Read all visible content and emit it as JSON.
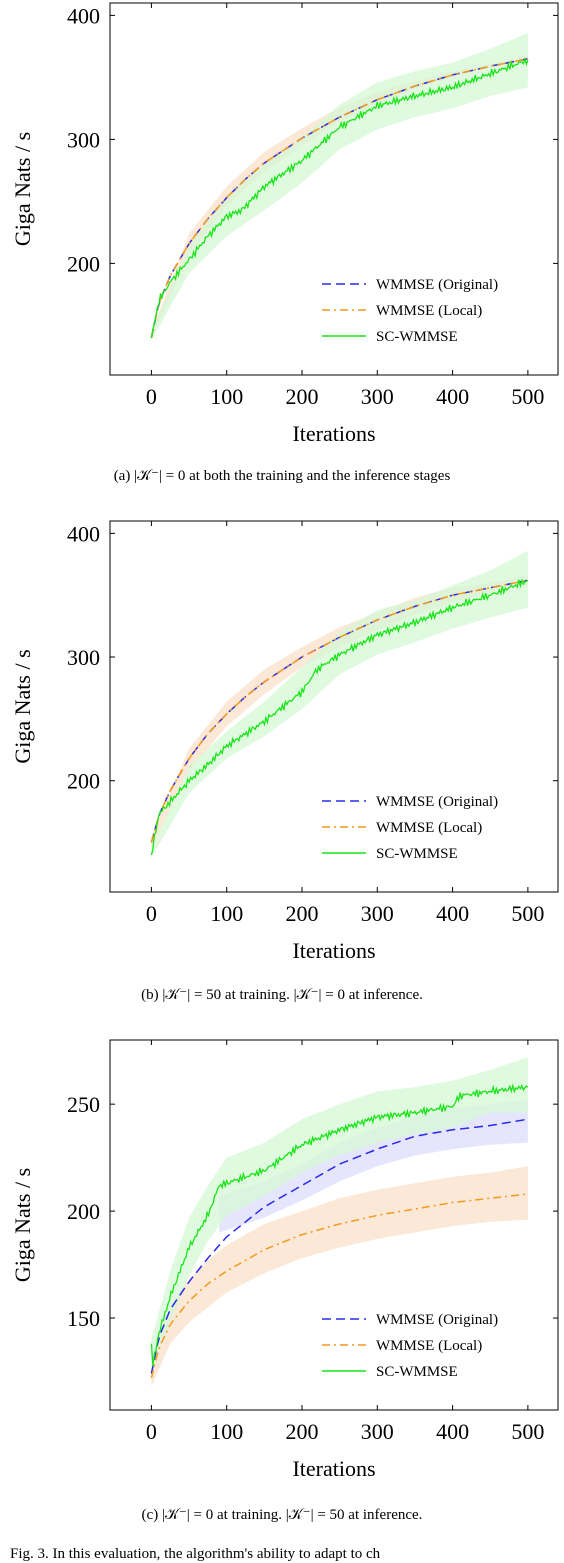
{
  "chart_data": [
    {
      "type": "line",
      "xlabel": "Iterations",
      "ylabel": "Giga Nats / s",
      "xlim": [
        -55,
        540
      ],
      "ylim": [
        110,
        410
      ],
      "xticks": [
        0,
        100,
        200,
        300,
        400,
        500
      ],
      "yticks": [
        200,
        300,
        400
      ],
      "legend_position": "bottom-right",
      "grid": false,
      "series": [
        {
          "name": "WMMSE (Original)",
          "style": "dashed",
          "color": "#2a2ae8",
          "x": [
            0,
            10,
            25,
            50,
            75,
            100,
            125,
            150,
            200,
            250,
            300,
            350,
            400,
            450,
            500
          ],
          "y": [
            140,
            168,
            190,
            216,
            236,
            253,
            268,
            281,
            301,
            318,
            332,
            343,
            352,
            359,
            365
          ]
        },
        {
          "name": "WMMSE (Local)",
          "style": "dashdot",
          "color": "#f39a1e",
          "x": [
            0,
            10,
            25,
            50,
            75,
            100,
            125,
            150,
            200,
            250,
            300,
            350,
            400,
            450,
            500
          ],
          "y": [
            140,
            168,
            190,
            216,
            236,
            253,
            268,
            281,
            301,
            318,
            332,
            343,
            352,
            359,
            365
          ]
        },
        {
          "name": "SC-WMMSE",
          "style": "solid",
          "color": "#18e418",
          "x": [
            0,
            10,
            25,
            50,
            75,
            100,
            120,
            150,
            200,
            250,
            300,
            350,
            400,
            450,
            500
          ],
          "y": [
            140,
            170,
            185,
            203,
            222,
            238,
            243,
            262,
            283,
            310,
            327,
            335,
            342,
            353,
            364
          ]
        }
      ],
      "bands": [
        {
          "series": "WMMSE (Local)",
          "color": "#fbe0c8",
          "x": [
            0,
            50,
            100,
            150,
            200,
            250,
            300,
            350,
            400,
            450,
            500
          ],
          "lower": [
            138,
            208,
            246,
            274,
            295,
            314,
            328,
            341,
            350,
            358,
            362
          ],
          "upper": [
            144,
            224,
            262,
            290,
            309,
            326,
            338,
            347,
            355,
            361,
            367
          ]
        },
        {
          "series": "SC-WMMSE",
          "color": "#d6f8d6",
          "x": [
            0,
            50,
            100,
            150,
            200,
            250,
            300,
            350,
            400,
            450,
            500
          ],
          "lower": [
            138,
            192,
            222,
            243,
            265,
            292,
            308,
            318,
            325,
            335,
            342
          ],
          "upper": [
            145,
            214,
            254,
            280,
            302,
            328,
            346,
            355,
            362,
            373,
            386
          ]
        }
      ]
    },
    {
      "type": "line",
      "xlabel": "Iterations",
      "ylabel": "Giga Nats / s",
      "xlim": [
        -55,
        540
      ],
      "ylim": [
        110,
        410
      ],
      "xticks": [
        0,
        100,
        200,
        300,
        400,
        500
      ],
      "yticks": [
        200,
        300,
        400
      ],
      "legend_position": "bottom-right",
      "grid": false,
      "series": [
        {
          "name": "WMMSE (Original)",
          "style": "dashed",
          "color": "#2a2ae8",
          "x": [
            0,
            10,
            25,
            50,
            75,
            100,
            125,
            150,
            200,
            250,
            300,
            350,
            400,
            450,
            500
          ],
          "y": [
            150,
            172,
            192,
            218,
            238,
            254,
            268,
            280,
            300,
            316,
            330,
            341,
            350,
            356,
            362
          ]
        },
        {
          "name": "WMMSE (Local)",
          "style": "dashdot",
          "color": "#f39a1e",
          "x": [
            0,
            10,
            25,
            50,
            75,
            100,
            125,
            150,
            200,
            250,
            300,
            350,
            400,
            450,
            500
          ],
          "y": [
            150,
            172,
            192,
            218,
            238,
            254,
            268,
            280,
            300,
            316,
            330,
            341,
            350,
            356,
            362
          ]
        },
        {
          "name": "SC-WMMSE",
          "style": "solid",
          "color": "#18e418",
          "x": [
            0,
            10,
            25,
            50,
            75,
            100,
            150,
            200,
            220,
            250,
            300,
            350,
            400,
            450,
            500
          ],
          "y": [
            140,
            173,
            183,
            200,
            213,
            228,
            248,
            272,
            290,
            302,
            318,
            328,
            340,
            350,
            362
          ]
        }
      ],
      "bands": [
        {
          "series": "WMMSE (Local)",
          "color": "#fbe0c8",
          "x": [
            0,
            50,
            100,
            150,
            200,
            250,
            300,
            350,
            400,
            450,
            500
          ],
          "lower": [
            145,
            208,
            244,
            270,
            292,
            308,
            322,
            334,
            344,
            352,
            358
          ],
          "upper": [
            155,
            226,
            264,
            290,
            308,
            324,
            336,
            348,
            356,
            360,
            366
          ]
        },
        {
          "series": "SC-WMMSE",
          "color": "#d6f8d6",
          "x": [
            0,
            50,
            100,
            150,
            200,
            250,
            300,
            350,
            400,
            450,
            500
          ],
          "lower": [
            138,
            190,
            218,
            236,
            258,
            286,
            302,
            312,
            323,
            332,
            340
          ],
          "upper": [
            145,
            212,
            240,
            264,
            292,
            320,
            338,
            346,
            358,
            370,
            386
          ]
        }
      ]
    },
    {
      "type": "line",
      "xlabel": "Iterations",
      "ylabel": "Giga Nats / s",
      "xlim": [
        -55,
        540
      ],
      "ylim": [
        107,
        280
      ],
      "xticks": [
        0,
        100,
        200,
        300,
        400,
        500
      ],
      "yticks": [
        150,
        200,
        250
      ],
      "legend_position": "bottom-right",
      "grid": false,
      "series": [
        {
          "name": "WMMSE (Original)",
          "style": "dashed",
          "color": "#2a2ae8",
          "x": [
            0,
            10,
            25,
            50,
            75,
            100,
            150,
            200,
            250,
            300,
            350,
            400,
            450,
            500
          ],
          "y": [
            124,
            141,
            154,
            167,
            178,
            188,
            202,
            212,
            222,
            229,
            235,
            238,
            240,
            243
          ]
        },
        {
          "name": "WMMSE (Local)",
          "style": "dashdot",
          "color": "#f39a1e",
          "x": [
            0,
            10,
            25,
            50,
            75,
            100,
            150,
            200,
            250,
            300,
            350,
            400,
            450,
            500
          ],
          "y": [
            122,
            136,
            147,
            158,
            166,
            172,
            182,
            189,
            194,
            198,
            201,
            204,
            206,
            208
          ]
        },
        {
          "name": "SC-WMMSE",
          "style": "solid",
          "color": "#18e418",
          "x": [
            0,
            2,
            5,
            10,
            25,
            50,
            75,
            90,
            100,
            150,
            200,
            250,
            300,
            350,
            400,
            410,
            450,
            500
          ],
          "y": [
            138,
            128,
            134,
            143,
            160,
            183,
            198,
            212,
            213,
            219,
            231,
            238,
            244,
            246,
            249,
            254,
            256,
            258
          ]
        }
      ],
      "bands": [
        {
          "series": "WMMSE (Original)",
          "color": "#dcdcfc",
          "x": [
            90,
            150,
            200,
            250,
            300,
            350,
            400,
            450,
            500
          ],
          "lower": [
            190,
            197,
            205,
            214,
            221,
            226,
            229,
            231,
            232
          ],
          "upper": [
            207,
            214,
            222,
            232,
            239,
            244,
            248,
            250,
            252
          ]
        },
        {
          "series": "WMMSE (Local)",
          "color": "#fbe0c8",
          "x": [
            0,
            25,
            50,
            75,
            100,
            150,
            200,
            250,
            300,
            350,
            400,
            450,
            500
          ],
          "lower": [
            118,
            138,
            148,
            155,
            162,
            171,
            178,
            183,
            187,
            190,
            193,
            195,
            196
          ],
          "upper": [
            126,
            156,
            168,
            177,
            184,
            194,
            200,
            206,
            210,
            213,
            216,
            218,
            221
          ]
        },
        {
          "series": "SC-WMMSE",
          "color": "#d6f8d6",
          "x": [
            0,
            25,
            50,
            75,
            100,
            150,
            200,
            250,
            300,
            350,
            400,
            450,
            500
          ],
          "lower": [
            126,
            148,
            170,
            186,
            198,
            207,
            218,
            226,
            232,
            236,
            239,
            246,
            246
          ],
          "upper": [
            140,
            172,
            197,
            212,
            225,
            232,
            243,
            250,
            256,
            258,
            261,
            266,
            272
          ]
        }
      ]
    }
  ],
  "captions": [
    "(a) |𝒦⁻| = 0 at both the training and the inference stages",
    "(b) |𝒦⁻| = 50 at training. |𝒦⁻| = 0 at inference.",
    "(c) |𝒦⁻| = 0 at training. |𝒦⁻| = 50 at inference."
  ],
  "figure_caption_fragment": "Fig. 3.   In this evaluation, the algorithm's ability to adapt to ch"
}
